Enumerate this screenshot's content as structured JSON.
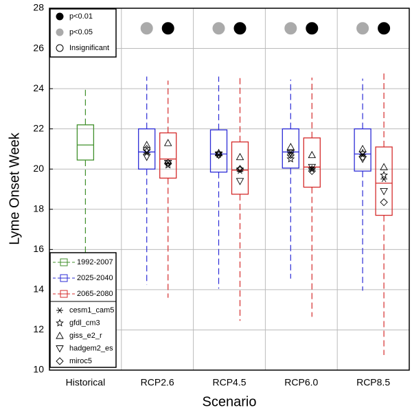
{
  "chart_data": {
    "type": "box",
    "xlabel": "Scenario",
    "ylabel": "Lyme Onset Week",
    "categories": [
      "Historical",
      "RCP2.6",
      "RCP4.5",
      "RCP6.0",
      "RCP8.5"
    ],
    "ylim": [
      10,
      28
    ],
    "yticks": [
      10,
      12,
      14,
      16,
      18,
      20,
      22,
      24,
      26,
      28
    ],
    "grid": true,
    "significance_legend": [
      {
        "name": "p<0.01",
        "color": "#000000"
      },
      {
        "name": "p<0.05",
        "color": "#aaaaaa"
      },
      {
        "name": "Insignificant",
        "color": "none"
      }
    ],
    "models": [
      {
        "name": "cesm1_cam5",
        "marker": "asterisk"
      },
      {
        "name": "gfdl_cm3",
        "marker": "star"
      },
      {
        "name": "giss_e2_r",
        "marker": "triangle-up"
      },
      {
        "name": "hadgem2_es",
        "marker": "triangle-down"
      },
      {
        "name": "miroc5",
        "marker": "diamond"
      }
    ],
    "series": [
      {
        "name": "1992-2007",
        "color": "#3f8f2a",
        "boxes": [
          {
            "low": 15.8,
            "q1": 20.45,
            "median": 21.2,
            "q3": 22.2,
            "high": 24.1
          },
          null,
          null,
          null,
          null
        ]
      },
      {
        "name": "2025-2040",
        "color": "#2b2bd6",
        "boxes": [
          null,
          {
            "low": 14.25,
            "q1": 20.0,
            "median": 20.85,
            "q3": 22.0,
            "high": 24.6,
            "models": [
              20.8,
              20.9,
              21.2,
              20.6,
              21.0
            ],
            "significance": "p<0.05"
          },
          {
            "low": 14.05,
            "q1": 19.85,
            "median": 20.75,
            "q3": 21.95,
            "high": 24.6,
            "models": [
              20.7,
              20.8,
              20.8,
              20.7,
              20.7
            ],
            "significance": "p<0.05"
          },
          {
            "low": 14.55,
            "q1": 20.05,
            "median": 20.85,
            "q3": 22.0,
            "high": 24.45,
            "models": [
              20.8,
              20.5,
              21.1,
              20.8,
              20.7
            ],
            "significance": "p<0.05"
          },
          {
            "low": 13.95,
            "q1": 19.9,
            "median": 20.75,
            "q3": 22.0,
            "high": 24.5,
            "models": [
              20.7,
              20.8,
              21.0,
              20.5,
              20.6
            ],
            "significance": "p<0.05"
          }
        ]
      },
      {
        "name": "2065-2080",
        "color": "#d42a2a",
        "boxes": [
          null,
          {
            "low": 13.6,
            "q1": 19.55,
            "median": 20.5,
            "q3": 21.8,
            "high": 24.4,
            "models": [
              20.3,
              20.2,
              21.3,
              20.3,
              20.3
            ],
            "significance": "p<0.01"
          },
          {
            "low": 12.45,
            "q1": 18.75,
            "median": 19.95,
            "q3": 21.35,
            "high": 24.65,
            "models": [
              19.9,
              20.0,
              20.6,
              19.4,
              20.0
            ],
            "significance": "p<0.01"
          },
          {
            "low": 12.65,
            "q1": 19.1,
            "median": 20.1,
            "q3": 21.55,
            "high": 24.55,
            "models": [
              20.0,
              20.0,
              20.7,
              20.1,
              19.9
            ],
            "significance": "p<0.01"
          },
          {
            "low": 10.75,
            "q1": 17.7,
            "median": 19.3,
            "q3": 21.1,
            "high": 24.8,
            "models": [
              19.5,
              19.7,
              20.1,
              18.9,
              18.35
            ],
            "significance": "p<0.01"
          }
        ]
      }
    ]
  }
}
